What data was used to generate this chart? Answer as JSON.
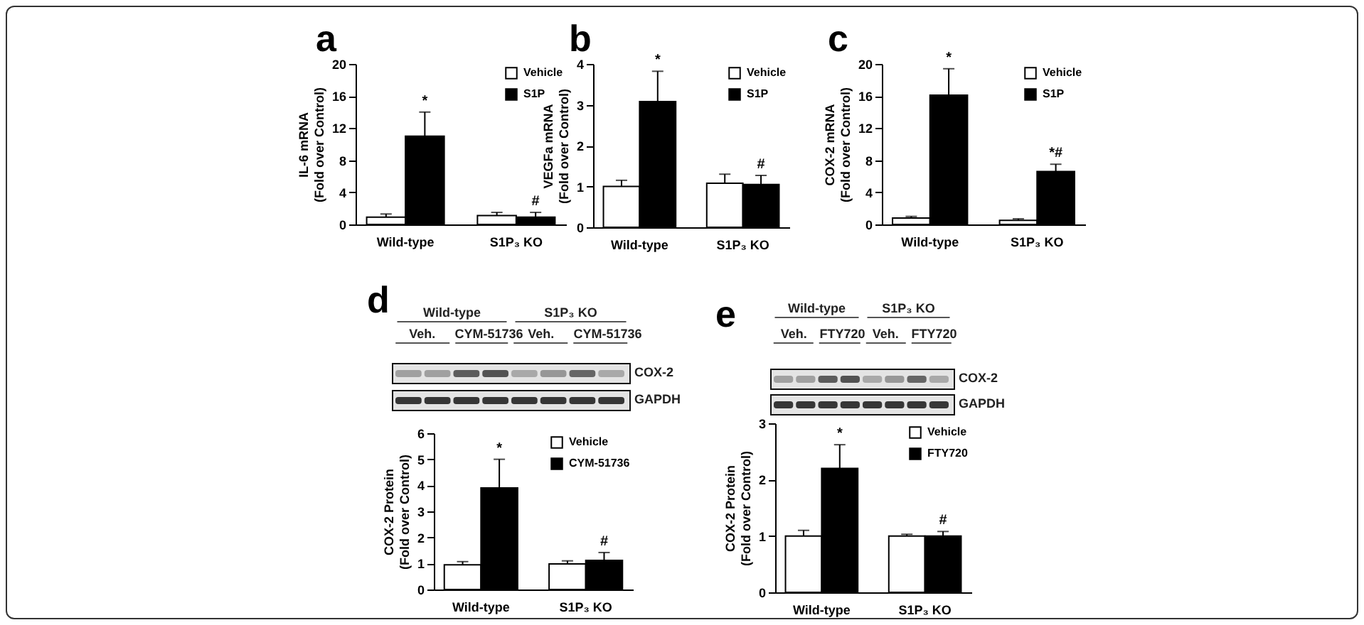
{
  "chart_data": [
    {
      "type": "bar",
      "title": "a",
      "ylabel": "IL-6 mRNA\n(Fold over Control)",
      "categories": [
        "Wild-type",
        "S1P₃ KO"
      ],
      "ylim": [
        0,
        20
      ],
      "yticks": [
        0,
        4,
        8,
        12,
        16,
        20
      ],
      "legend": "top right",
      "series": [
        {
          "name": "Vehicle",
          "color": "#ffffff",
          "values": [
            0.9,
            1.1
          ],
          "errors": [
            [
              0.9,
              1.3
            ],
            [
              1.1,
              1.5
            ]
          ]
        },
        {
          "name": "S1P",
          "color": "#000000",
          "values": [
            11,
            0.9
          ],
          "errors": [
            [
              11,
              14
            ],
            [
              0.9,
              1.5
            ]
          ]
        }
      ],
      "annotations": [
        "*",
        "#"
      ]
    },
    {
      "type": "bar",
      "title": "b",
      "ylabel": "VEGFa mRNA\n(Fold over Control)",
      "categories": [
        "Wild-type",
        "S1P₃ KO"
      ],
      "ylim": [
        0,
        4
      ],
      "yticks": [
        0,
        1,
        2,
        3,
        4
      ],
      "legend": "top right",
      "series": [
        {
          "name": "Vehicle",
          "color": "#ffffff",
          "values": [
            1.0,
            1.08
          ],
          "errors": [
            [
              1.0,
              1.15
            ],
            [
              1.08,
              1.3
            ]
          ]
        },
        {
          "name": "S1P",
          "color": "#000000",
          "values": [
            3.08,
            1.05
          ],
          "errors": [
            [
              3.08,
              3.82
            ],
            [
              1.05,
              1.27
            ]
          ]
        }
      ],
      "annotations": [
        "*",
        "#"
      ]
    },
    {
      "type": "bar",
      "title": "c",
      "ylabel": "COX-2 mRNA\n(Fold over Control)",
      "categories": [
        "Wild-type",
        "S1P₃ KO"
      ],
      "ylim": [
        0,
        20
      ],
      "yticks": [
        0,
        4,
        8,
        12,
        16,
        20
      ],
      "legend": "top right",
      "series": [
        {
          "name": "Vehicle",
          "color": "#ffffff",
          "values": [
            0.8,
            0.5
          ],
          "errors": [
            [
              0.8,
              1.0
            ],
            [
              0.5,
              0.7
            ]
          ]
        },
        {
          "name": "S1P",
          "color": "#000000",
          "values": [
            16.1,
            6.6
          ],
          "errors": [
            [
              16.1,
              19.4
            ],
            [
              6.6,
              7.5
            ]
          ]
        }
      ],
      "annotations": [
        "*",
        "*#"
      ]
    },
    {
      "type": "other",
      "title": "d",
      "annotations": [
        "Wild-type",
        "S1P₃ KO",
        "Veh.",
        "CYM-51736",
        "Veh.",
        "CYM-51736",
        "COX-2",
        "GAPDH"
      ]
    },
    {
      "type": "bar",
      "ylabel": "COX-2 Protein\n(Fold over Control)",
      "categories": [
        "Wild-type",
        "S1P₃ KO"
      ],
      "ylim": [
        0,
        6
      ],
      "yticks": [
        0,
        1,
        2,
        3,
        4,
        5,
        6
      ],
      "legend": "top right",
      "series": [
        {
          "name": "Vehicle",
          "color": "#ffffff",
          "values": [
            0.95,
            0.98
          ],
          "errors": [
            [
              0.95,
              1.07
            ],
            [
              0.98,
              1.1
            ]
          ]
        },
        {
          "name": "CYM-51736",
          "color": "#000000",
          "values": [
            3.9,
            1.12
          ],
          "errors": [
            [
              3.9,
              5.0
            ],
            [
              1.12,
              1.42
            ]
          ]
        }
      ],
      "annotations": [
        "*",
        "#"
      ]
    },
    {
      "type": "other",
      "title": "e",
      "annotations": [
        "Wild-type",
        "S1P₃ KO",
        "Veh.",
        "FTY720",
        "Veh.",
        "FTY720",
        "COX-2",
        "GAPDH"
      ]
    },
    {
      "type": "bar",
      "ylabel": "COX-2 Protein\n(Fold over Control)",
      "categories": [
        "Wild-type",
        "S1P₃ KO"
      ],
      "ylim": [
        0,
        3
      ],
      "yticks": [
        0,
        1,
        2,
        3
      ],
      "legend": "top right",
      "series": [
        {
          "name": "Vehicle",
          "color": "#ffffff",
          "values": [
            1.0,
            1.0
          ],
          "errors": [
            [
              1.0,
              1.1
            ],
            [
              1.0,
              1.03
            ]
          ]
        },
        {
          "name": "FTY720",
          "color": "#000000",
          "values": [
            2.2,
            1.0
          ],
          "errors": [
            [
              2.2,
              2.62
            ],
            [
              1.0,
              1.08
            ]
          ]
        }
      ],
      "annotations": [
        "*",
        "#"
      ]
    }
  ]
}
